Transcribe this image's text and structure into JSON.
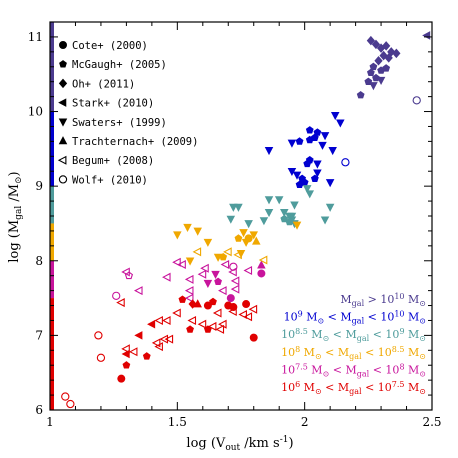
{
  "chart_data": {
    "type": "scatter",
    "xlabel": "log (V",
    "xlabel_sub": "out",
    "xlabel_tail": " /km s",
    "xlabel_sup": "-1",
    "xlabel_close": ")",
    "ylabel": "log (M",
    "ylabel_sub": "gal",
    "ylabel_tail": " /M",
    "ylabel_sun": "⊙",
    "ylabel_close": ")",
    "xlim": [
      1,
      2.5
    ],
    "ylim": [
      6,
      11.2
    ],
    "x_ticks": [
      "1",
      "1.5",
      "2",
      "2.5"
    ],
    "y_ticks": [
      "6",
      "7",
      "8",
      "9",
      "10",
      "11"
    ],
    "series": [
      {
        "name": "Cote+ (2000)",
        "marker": "circle",
        "filled": true
      },
      {
        "name": "McGaugh+ (2005)",
        "marker": "pentagon",
        "filled": true
      },
      {
        "name": "Oh+ (2011)",
        "marker": "diamond",
        "filled": true
      },
      {
        "name": "Stark+ (2010)",
        "marker": "triangle-left",
        "filled": true
      },
      {
        "name": "Swaters+ (1999)",
        "marker": "triangle-down",
        "filled": true
      },
      {
        "name": "Trachternach+ (2009)",
        "marker": "triangle-up",
        "filled": true
      },
      {
        "name": "Begum+ (2008)",
        "marker": "triangle-left",
        "filled": false
      },
      {
        "name": "Wolf+ (2010)",
        "marker": "circle",
        "filled": false
      }
    ],
    "mass_bins": [
      {
        "label": "M_gal > 10^10 M_sun",
        "color": "#4b3b8f",
        "ymin": 10,
        "ymax": 11.2,
        "parts": [
          "M",
          "gal",
          " > 10",
          "10",
          " M",
          "⊙"
        ]
      },
      {
        "label": "10^9 M_sun < M_gal < 10^10 M_sun",
        "color": "#0000d0",
        "ymin": 9,
        "ymax": 10,
        "parts": [
          "10",
          "9",
          " M",
          "⊙",
          " < M",
          "gal",
          " < 10",
          "10",
          " M",
          "⊙"
        ]
      },
      {
        "label": "10^8.5 M_sun < M_gal < 10^9 M_sun",
        "color": "#4f9c9c",
        "ymin": 8.5,
        "ymax": 9,
        "parts": [
          "10",
          "8.5",
          " M",
          "⊙",
          " < M",
          "gal",
          " < 10",
          "9",
          " M",
          "⊙"
        ]
      },
      {
        "label": "10^8 M_sun < M_gal < 10^8.5 M_sun",
        "color": "#f0a800",
        "ymin": 8,
        "ymax": 8.5,
        "parts": [
          "10",
          "8",
          " M",
          "⊙",
          " < M",
          "gal",
          " < 10",
          "8.5",
          " M",
          "⊙"
        ]
      },
      {
        "label": "10^7.5 M_sun < M_gal < 10^8 M_sun",
        "color": "#c8149c",
        "ymin": 7.5,
        "ymax": 8,
        "parts": [
          "10",
          "7.5",
          " M",
          "⊙",
          " < M",
          "gal",
          " < 10",
          "8",
          " M",
          "⊙"
        ]
      },
      {
        "label": "10^6 M_sun < M_gal < 10^7.5 M_sun",
        "color": "#e00000",
        "ymin": 6,
        "ymax": 7.5,
        "parts": [
          "10",
          "6",
          " M",
          "⊙",
          " < M",
          "gal",
          " < 10",
          "7.5",
          " M",
          "⊙"
        ]
      }
    ],
    "points": [
      {
        "x": 2.48,
        "y": 11.02,
        "m": "triangle-left",
        "f": true
      },
      {
        "x": 2.26,
        "y": 10.95,
        "m": "diamond",
        "f": true
      },
      {
        "x": 2.28,
        "y": 10.9,
        "m": "diamond",
        "f": true
      },
      {
        "x": 2.3,
        "y": 10.85,
        "m": "diamond",
        "f": true
      },
      {
        "x": 2.32,
        "y": 10.88,
        "m": "diamond",
        "f": true
      },
      {
        "x": 2.34,
        "y": 10.8,
        "m": "diamond",
        "f": true
      },
      {
        "x": 2.31,
        "y": 10.75,
        "m": "diamond",
        "f": true
      },
      {
        "x": 2.29,
        "y": 10.68,
        "m": "diamond",
        "f": true
      },
      {
        "x": 2.36,
        "y": 10.78,
        "m": "diamond",
        "f": true
      },
      {
        "x": 2.33,
        "y": 10.72,
        "m": "diamond",
        "f": true
      },
      {
        "x": 2.27,
        "y": 10.6,
        "m": "pentagon",
        "f": true
      },
      {
        "x": 2.26,
        "y": 10.52,
        "m": "pentagon",
        "f": true
      },
      {
        "x": 2.28,
        "y": 10.45,
        "m": "pentagon",
        "f": true
      },
      {
        "x": 2.3,
        "y": 10.55,
        "m": "pentagon",
        "f": true
      },
      {
        "x": 2.32,
        "y": 10.58,
        "m": "pentagon",
        "f": true
      },
      {
        "x": 2.25,
        "y": 10.4,
        "m": "pentagon",
        "f": true
      },
      {
        "x": 2.27,
        "y": 10.35,
        "m": "triangle-down",
        "f": true
      },
      {
        "x": 2.3,
        "y": 10.42,
        "m": "triangle-down",
        "f": true
      },
      {
        "x": 2.22,
        "y": 10.22,
        "m": "pentagon",
        "f": true
      },
      {
        "x": 2.44,
        "y": 10.15,
        "m": "circle",
        "f": false
      },
      {
        "x": 2.12,
        "y": 9.95,
        "m": "triangle-down",
        "f": true
      },
      {
        "x": 2.14,
        "y": 9.85,
        "m": "triangle-down",
        "f": true
      },
      {
        "x": 2.02,
        "y": 9.75,
        "m": "pentagon",
        "f": true
      },
      {
        "x": 2.05,
        "y": 9.72,
        "m": "pentagon",
        "f": true
      },
      {
        "x": 2.08,
        "y": 9.68,
        "m": "triangle-down",
        "f": true
      },
      {
        "x": 2.02,
        "y": 9.62,
        "m": "pentagon",
        "f": true
      },
      {
        "x": 2.04,
        "y": 9.65,
        "m": "pentagon",
        "f": true
      },
      {
        "x": 1.98,
        "y": 9.6,
        "m": "pentagon",
        "f": true
      },
      {
        "x": 2.07,
        "y": 9.55,
        "m": "triangle-down",
        "f": true
      },
      {
        "x": 1.95,
        "y": 9.58,
        "m": "triangle-down",
        "f": true
      },
      {
        "x": 1.86,
        "y": 9.48,
        "m": "triangle-down",
        "f": true
      },
      {
        "x": 2.11,
        "y": 9.48,
        "m": "triangle-down",
        "f": true
      },
      {
        "x": 2.02,
        "y": 9.35,
        "m": "pentagon",
        "f": true
      },
      {
        "x": 2.01,
        "y": 9.3,
        "m": "pentagon",
        "f": true
      },
      {
        "x": 2.05,
        "y": 9.3,
        "m": "triangle-down",
        "f": true
      },
      {
        "x": 2.16,
        "y": 9.32,
        "m": "circle",
        "f": false
      },
      {
        "x": 1.95,
        "y": 9.2,
        "m": "triangle-down",
        "f": true
      },
      {
        "x": 1.97,
        "y": 9.15,
        "m": "triangle-down",
        "f": true
      },
      {
        "x": 2.05,
        "y": 9.18,
        "m": "triangle-down",
        "f": true
      },
      {
        "x": 1.99,
        "y": 9.1,
        "m": "pentagon",
        "f": true
      },
      {
        "x": 2.04,
        "y": 9.1,
        "m": "pentagon",
        "f": true
      },
      {
        "x": 1.98,
        "y": 9.02,
        "m": "pentagon",
        "f": true
      },
      {
        "x": 2.0,
        "y": 9.05,
        "m": "pentagon",
        "f": true
      },
      {
        "x": 2.1,
        "y": 9.05,
        "m": "triangle-down",
        "f": true
      },
      {
        "x": 2.01,
        "y": 8.97,
        "m": "triangle-down",
        "f": true
      },
      {
        "x": 2.02,
        "y": 8.9,
        "m": "triangle-down",
        "f": true
      },
      {
        "x": 1.86,
        "y": 8.82,
        "m": "triangle-down",
        "f": true
      },
      {
        "x": 1.9,
        "y": 8.82,
        "m": "triangle-down",
        "f": true
      },
      {
        "x": 1.96,
        "y": 8.75,
        "m": "triangle-down",
        "f": true
      },
      {
        "x": 2.1,
        "y": 8.72,
        "m": "triangle-down",
        "f": true
      },
      {
        "x": 1.72,
        "y": 8.72,
        "m": "triangle-down",
        "f": true
      },
      {
        "x": 1.74,
        "y": 8.72,
        "m": "triangle-down",
        "f": true
      },
      {
        "x": 1.86,
        "y": 8.65,
        "m": "triangle-down",
        "f": true
      },
      {
        "x": 1.92,
        "y": 8.65,
        "m": "triangle-down",
        "f": true
      },
      {
        "x": 1.94,
        "y": 8.6,
        "m": "triangle-down",
        "f": true
      },
      {
        "x": 1.71,
        "y": 8.56,
        "m": "triangle-down",
        "f": true
      },
      {
        "x": 1.84,
        "y": 8.54,
        "m": "triangle-down",
        "f": true
      },
      {
        "x": 1.92,
        "y": 8.56,
        "m": "pentagon",
        "f": true
      },
      {
        "x": 1.94,
        "y": 8.52,
        "m": "pentagon",
        "f": true
      },
      {
        "x": 1.95,
        "y": 8.55,
        "m": "triangle-down",
        "f": true
      },
      {
        "x": 2.08,
        "y": 8.55,
        "m": "triangle-down",
        "f": true
      },
      {
        "x": 1.78,
        "y": 8.5,
        "m": "triangle-down",
        "f": true
      },
      {
        "x": 1.96,
        "y": 8.5,
        "m": "triangle-down",
        "f": true
      },
      {
        "x": 1.97,
        "y": 8.48,
        "m": "triangle-down",
        "f": true
      },
      {
        "x": 1.95,
        "y": 8.6,
        "m": "triangle-down",
        "f": true
      },
      {
        "x": 1.54,
        "y": 8.45,
        "m": "triangle-down",
        "f": true
      },
      {
        "x": 1.58,
        "y": 8.4,
        "m": "triangle-down",
        "f": true
      },
      {
        "x": 1.5,
        "y": 8.35,
        "m": "triangle-down",
        "f": true
      },
      {
        "x": 1.76,
        "y": 8.38,
        "m": "triangle-down",
        "f": true
      },
      {
        "x": 1.8,
        "y": 8.35,
        "m": "triangle-down",
        "f": true
      },
      {
        "x": 1.74,
        "y": 8.3,
        "m": "pentagon",
        "f": true
      },
      {
        "x": 1.78,
        "y": 8.3,
        "m": "circle",
        "f": true
      },
      {
        "x": 1.77,
        "y": 8.25,
        "m": "triangle-down",
        "f": true
      },
      {
        "x": 1.81,
        "y": 8.26,
        "m": "triangle-up",
        "f": true
      },
      {
        "x": 1.62,
        "y": 8.25,
        "m": "triangle-down",
        "f": true
      },
      {
        "x": 1.58,
        "y": 8.12,
        "m": "triangle-left",
        "f": false
      },
      {
        "x": 1.7,
        "y": 8.12,
        "m": "triangle-left",
        "f": false
      },
      {
        "x": 1.74,
        "y": 8.08,
        "m": "triangle-left",
        "f": false
      },
      {
        "x": 1.66,
        "y": 8.05,
        "m": "triangle-down",
        "f": true
      },
      {
        "x": 1.68,
        "y": 8.05,
        "m": "pentagon",
        "f": true
      },
      {
        "x": 1.75,
        "y": 8.1,
        "m": "triangle-down",
        "f": true
      },
      {
        "x": 1.55,
        "y": 8.0,
        "m": "triangle-down",
        "f": true
      },
      {
        "x": 1.5,
        "y": 7.98,
        "m": "triangle-left",
        "f": false
      },
      {
        "x": 1.52,
        "y": 7.95,
        "m": "triangle-left",
        "f": false
      },
      {
        "x": 1.69,
        "y": 7.95,
        "m": "triangle-left",
        "f": false
      },
      {
        "x": 1.72,
        "y": 7.92,
        "m": "circle",
        "f": false
      },
      {
        "x": 1.83,
        "y": 7.94,
        "m": "triangle-up",
        "f": true
      },
      {
        "x": 1.84,
        "y": 8.01,
        "m": "triangle-left",
        "f": false
      },
      {
        "x": 1.61,
        "y": 7.9,
        "m": "triangle-left",
        "f": false
      },
      {
        "x": 1.6,
        "y": 7.82,
        "m": "triangle-left",
        "f": false
      },
      {
        "x": 1.65,
        "y": 7.82,
        "m": "triangle-down",
        "f": true
      },
      {
        "x": 1.72,
        "y": 7.85,
        "m": "triangle-left",
        "f": false
      },
      {
        "x": 1.78,
        "y": 7.87,
        "m": "triangle-left",
        "f": false
      },
      {
        "x": 1.3,
        "y": 7.85,
        "m": "triangle-left",
        "f": false
      },
      {
        "x": 1.31,
        "y": 7.8,
        "m": "pentagon",
        "f": false
      },
      {
        "x": 1.46,
        "y": 7.78,
        "m": "triangle-left",
        "f": false
      },
      {
        "x": 1.55,
        "y": 7.75,
        "m": "triangle-left",
        "f": false
      },
      {
        "x": 1.62,
        "y": 7.7,
        "m": "triangle-down",
        "f": true
      },
      {
        "x": 1.66,
        "y": 7.72,
        "m": "pentagon",
        "f": true
      },
      {
        "x": 1.73,
        "y": 7.73,
        "m": "triangle-left",
        "f": false
      },
      {
        "x": 1.83,
        "y": 7.83,
        "m": "circle",
        "f": true
      },
      {
        "x": 1.55,
        "y": 7.6,
        "m": "triangle-left",
        "f": false
      },
      {
        "x": 1.68,
        "y": 7.6,
        "m": "triangle-left",
        "f": false
      },
      {
        "x": 1.73,
        "y": 7.62,
        "m": "triangle-left",
        "f": false
      },
      {
        "x": 1.26,
        "y": 7.53,
        "m": "circle",
        "f": false
      },
      {
        "x": 1.35,
        "y": 7.6,
        "m": "triangle-left",
        "f": false
      },
      {
        "x": 1.28,
        "y": 7.44,
        "m": "triangle-left",
        "f": false
      },
      {
        "x": 1.52,
        "y": 7.48,
        "m": "pentagon",
        "f": true
      },
      {
        "x": 1.55,
        "y": 7.5,
        "m": "triangle-left",
        "f": false
      },
      {
        "x": 1.64,
        "y": 7.45,
        "m": "pentagon",
        "f": true
      },
      {
        "x": 1.71,
        "y": 7.5,
        "m": "circle",
        "f": true
      },
      {
        "x": 1.56,
        "y": 7.42,
        "m": "diamond",
        "f": true
      },
      {
        "x": 1.58,
        "y": 7.42,
        "m": "triangle-up",
        "f": true
      },
      {
        "x": 1.62,
        "y": 7.4,
        "m": "circle",
        "f": true
      },
      {
        "x": 1.7,
        "y": 7.4,
        "m": "circle",
        "f": true
      },
      {
        "x": 1.72,
        "y": 7.38,
        "m": "circle",
        "f": true
      },
      {
        "x": 1.77,
        "y": 7.42,
        "m": "circle",
        "f": true
      },
      {
        "x": 1.5,
        "y": 7.3,
        "m": "triangle-left",
        "f": false
      },
      {
        "x": 1.66,
        "y": 7.3,
        "m": "triangle-left",
        "f": false
      },
      {
        "x": 1.72,
        "y": 7.32,
        "m": "triangle-left",
        "f": false
      },
      {
        "x": 1.76,
        "y": 7.28,
        "m": "triangle-left",
        "f": false
      },
      {
        "x": 1.78,
        "y": 7.25,
        "m": "triangle-left",
        "f": false
      },
      {
        "x": 1.8,
        "y": 7.35,
        "m": "triangle-left",
        "f": false
      },
      {
        "x": 1.43,
        "y": 7.2,
        "m": "triangle-left",
        "f": false
      },
      {
        "x": 1.46,
        "y": 7.2,
        "m": "triangle-left",
        "f": false
      },
      {
        "x": 1.56,
        "y": 7.2,
        "m": "triangle-left",
        "f": false
      },
      {
        "x": 1.6,
        "y": 7.15,
        "m": "triangle-left",
        "f": false
      },
      {
        "x": 1.64,
        "y": 7.12,
        "m": "triangle-left",
        "f": false
      },
      {
        "x": 1.68,
        "y": 7.15,
        "m": "triangle-left",
        "f": false
      },
      {
        "x": 1.4,
        "y": 7.15,
        "m": "triangle-left",
        "f": true
      },
      {
        "x": 1.55,
        "y": 7.08,
        "m": "pentagon",
        "f": true
      },
      {
        "x": 1.62,
        "y": 7.08,
        "m": "pentagon",
        "f": true
      },
      {
        "x": 1.67,
        "y": 7.08,
        "m": "triangle-left",
        "f": false
      },
      {
        "x": 1.35,
        "y": 7.0,
        "m": "triangle-left",
        "f": true
      },
      {
        "x": 1.45,
        "y": 6.95,
        "m": "triangle-left",
        "f": false
      },
      {
        "x": 1.47,
        "y": 6.95,
        "m": "triangle-left",
        "f": false
      },
      {
        "x": 1.19,
        "y": 7.0,
        "m": "circle",
        "f": false
      },
      {
        "x": 1.42,
        "y": 6.9,
        "m": "triangle-left",
        "f": false
      },
      {
        "x": 1.43,
        "y": 6.85,
        "m": "triangle-left",
        "f": false
      },
      {
        "x": 1.8,
        "y": 6.97,
        "m": "circle",
        "f": true
      },
      {
        "x": 1.3,
        "y": 6.82,
        "m": "triangle-left",
        "f": false
      },
      {
        "x": 1.33,
        "y": 6.78,
        "m": "triangle-left",
        "f": false
      },
      {
        "x": 1.3,
        "y": 6.75,
        "m": "triangle-left",
        "f": true
      },
      {
        "x": 1.38,
        "y": 6.72,
        "m": "pentagon",
        "f": true
      },
      {
        "x": 1.2,
        "y": 6.7,
        "m": "circle",
        "f": false
      },
      {
        "x": 1.3,
        "y": 6.6,
        "m": "pentagon",
        "f": true
      },
      {
        "x": 1.28,
        "y": 6.42,
        "m": "circle",
        "f": true
      },
      {
        "x": 1.06,
        "y": 6.18,
        "m": "circle",
        "f": false
      },
      {
        "x": 1.08,
        "y": 6.08,
        "m": "circle",
        "f": false
      }
    ]
  }
}
